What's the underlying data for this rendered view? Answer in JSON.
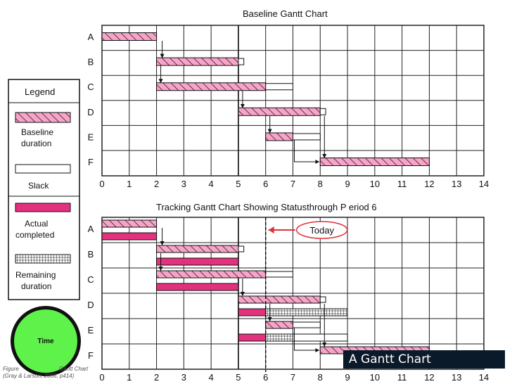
{
  "colors": {
    "baseline_fill": "#f4a6c8",
    "actual_fill": "#e4317e",
    "slack_fill": "#ffffff",
    "remaining_fill": "#ffffff",
    "grid": "#222222",
    "today_line": "#111111",
    "today_arrow": "#e0303a",
    "time_circle": "#5ef24a",
    "caption_bg": "#0b1a2a"
  },
  "legend": {
    "title": "Legend",
    "baseline": "Baseline duration",
    "slack": "Slack",
    "actual": "Actual completed",
    "remaining": "Remaining duration"
  },
  "time_label": "Time",
  "caption": "A Gantt Chart",
  "figure_caption": {
    "line1_prefix": "Figure",
    "line1_suffix": "Gantt Chart",
    "line2": "(Gray & Larson, 2006, p414)"
  },
  "chart_data": [
    {
      "type": "gantt",
      "title": "Baseline Gantt Chart",
      "xlim": [
        0,
        14
      ],
      "xticks": [
        0,
        1,
        2,
        3,
        4,
        5,
        6,
        7,
        8,
        9,
        10,
        11,
        12,
        13,
        14
      ],
      "tasks": [
        "A",
        "B",
        "C",
        "D",
        "E",
        "F"
      ],
      "baseline": [
        {
          "task": "A",
          "start": 0,
          "end": 2
        },
        {
          "task": "B",
          "start": 2,
          "end": 5
        },
        {
          "task": "C",
          "start": 2,
          "end": 6
        },
        {
          "task": "D",
          "start": 5,
          "end": 8
        },
        {
          "task": "E",
          "start": 6,
          "end": 7
        },
        {
          "task": "F",
          "start": 8,
          "end": 12
        }
      ],
      "slack": [
        {
          "task": "B",
          "start": 5,
          "end": 5.2
        },
        {
          "task": "C",
          "start": 6,
          "end": 7
        },
        {
          "task": "D",
          "start": 8,
          "end": 8.2
        },
        {
          "task": "E",
          "start": 7,
          "end": 8
        }
      ],
      "grid": true
    },
    {
      "type": "gantt",
      "title": "Tracking Gantt Chart Showing Statusthrough P    eriod 6",
      "today_label": "Today",
      "today": 6,
      "xlim": [
        0,
        14
      ],
      "xticks": [
        0,
        1,
        2,
        3,
        4,
        5,
        6,
        7,
        8,
        9,
        10,
        11,
        12,
        13,
        14
      ],
      "tasks": [
        "A",
        "B",
        "C",
        "D",
        "E",
        "F"
      ],
      "baseline": [
        {
          "task": "A",
          "start": 0,
          "end": 2
        },
        {
          "task": "B",
          "start": 2,
          "end": 5
        },
        {
          "task": "C",
          "start": 2,
          "end": 6
        },
        {
          "task": "D",
          "start": 5,
          "end": 8
        },
        {
          "task": "E",
          "start": 6,
          "end": 7
        },
        {
          "task": "F",
          "start": 8,
          "end": 12
        }
      ],
      "slack": [
        {
          "task": "B",
          "start": 5,
          "end": 5.2
        },
        {
          "task": "C",
          "start": 6,
          "end": 7
        },
        {
          "task": "D",
          "start": 8,
          "end": 8.2
        },
        {
          "task": "E",
          "start": 7,
          "end": 8
        }
      ],
      "actual": [
        {
          "task": "A",
          "start": 0,
          "end": 2
        },
        {
          "task": "B",
          "start": 2,
          "end": 5
        },
        {
          "task": "C",
          "start": 2,
          "end": 5
        },
        {
          "task": "D",
          "start": 5,
          "end": 6
        },
        {
          "task": "E",
          "start": 5,
          "end": 6
        }
      ],
      "remaining": [
        {
          "task": "D",
          "start": 6,
          "end": 9
        },
        {
          "task": "E",
          "start": 6,
          "end": 7
        }
      ],
      "remaining_slack": [
        {
          "task": "E",
          "start": 7,
          "end": 9
        }
      ],
      "grid": true
    }
  ]
}
